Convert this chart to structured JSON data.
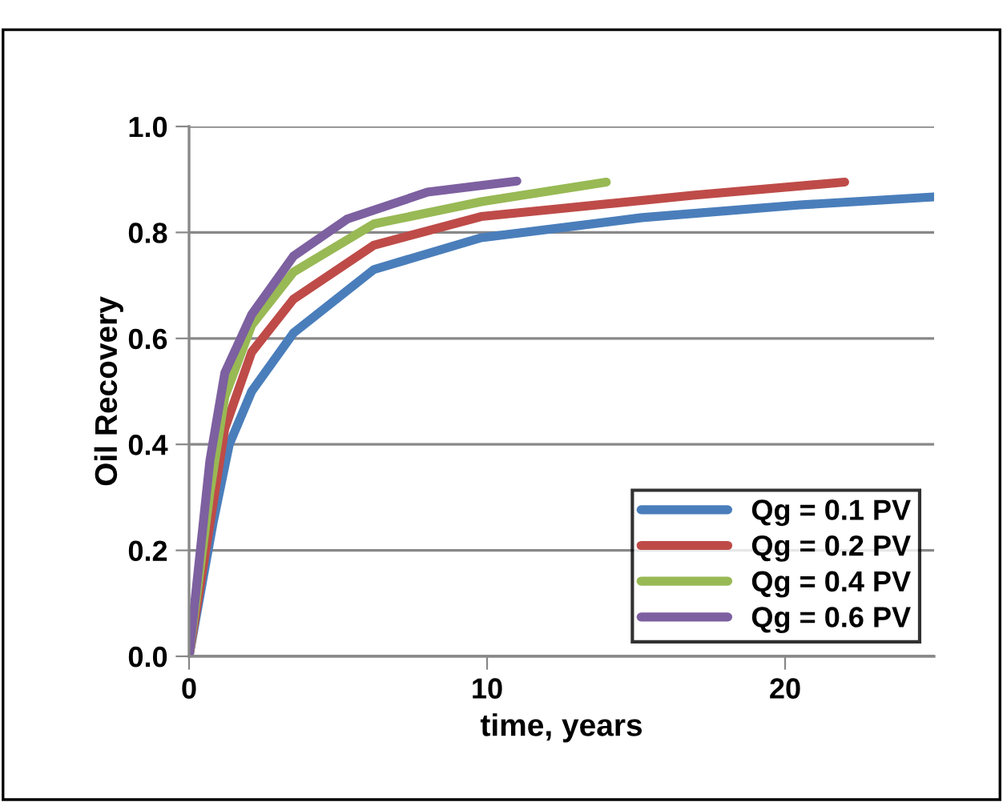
{
  "chart_data": {
    "type": "line",
    "xlabel": "time, years",
    "ylabel": "Oil Recovery",
    "xlim": [
      0,
      25
    ],
    "xticks": [
      0,
      10,
      20
    ],
    "ylim": [
      0,
      1.0
    ],
    "yticks": [
      {
        "value": 0,
        "label": "0.0"
      },
      {
        "value": 0.2,
        "label": "0.2"
      },
      {
        "value": 0.4,
        "label": "0.4"
      },
      {
        "value": 0.6,
        "label": "0.6"
      },
      {
        "value": 0.8,
        "label": "0.8"
      },
      {
        "value": 1.0,
        "label": "1.0"
      }
    ],
    "grid": "y",
    "legend": "bottom right",
    "marker": "none",
    "line_style": "solid",
    "series": [
      {
        "name": "Qg = 0.1 PV",
        "color": "#4a7ebb",
        "x": [
          0,
          0.8,
          1.35,
          2.1,
          3.5,
          6.2,
          9.8,
          15.2,
          20.5,
          25
        ],
        "values": [
          0,
          0.25,
          0.4,
          0.5,
          0.61,
          0.73,
          0.79,
          0.828,
          0.852,
          0.867
        ]
      },
      {
        "name": "Qg = 0.2 PV",
        "color": "#be4b48",
        "x": [
          0,
          0.7,
          1.2,
          2.1,
          3.5,
          6.2,
          9.8,
          16.9,
          22
        ],
        "values": [
          0,
          0.25,
          0.43,
          0.574,
          0.674,
          0.776,
          0.83,
          0.87,
          0.895
        ]
      },
      {
        "name": "Qg = 0.4 PV",
        "color": "#98b954",
        "x": [
          0,
          0.7,
          1.2,
          2.1,
          3.5,
          6.2,
          9.8,
          14
        ],
        "values": [
          0,
          0.31,
          0.49,
          0.625,
          0.725,
          0.816,
          0.858,
          0.895
        ]
      },
      {
        "name": "Qg = 0.6 PV",
        "color": "#7d60a0",
        "x": [
          0,
          0.7,
          1.2,
          2.1,
          3.5,
          5.3,
          8,
          11
        ],
        "values": [
          0,
          0.37,
          0.535,
          0.645,
          0.755,
          0.825,
          0.876,
          0.897
        ]
      }
    ]
  }
}
